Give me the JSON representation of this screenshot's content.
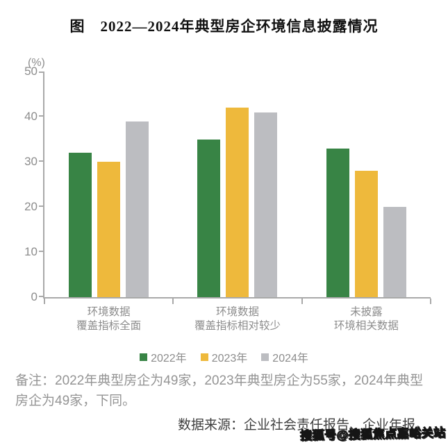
{
  "title": "图　2022—2024年典型房企环境信息披露情况",
  "chart_data": {
    "type": "bar",
    "title": "图　2022—2024年典型房企环境信息披露情况",
    "unit_label": "(%)",
    "categories": [
      "环境数据\n覆盖指标全面",
      "环境数据\n覆盖指标相对较少",
      "未披露\n环境相关数据"
    ],
    "series": [
      {
        "name": "2022年",
        "color": "#388445",
        "values": [
          32,
          35,
          33
        ]
      },
      {
        "name": "2023年",
        "color": "#EEB93C",
        "values": [
          30,
          42,
          28
        ]
      },
      {
        "name": "2024年",
        "color": "#BCBDC1",
        "values": [
          39,
          41,
          20
        ]
      }
    ],
    "ylim": [
      0,
      50
    ],
    "yticks": [
      0,
      10,
      20,
      30,
      40,
      50
    ],
    "grid": false,
    "legend_position": "bottom"
  },
  "notes": {
    "remark": "备注：2022年典型房企为49家，2023年典型房企为55家，2024年典型房企为49家，下同。",
    "source": "数据来源：企业社会责任报告、企业年报。"
  },
  "watermark": "搜狐号@搜狐焦点嘉峪关站",
  "colors": {
    "axis": "#A9A9A9",
    "tick_text": "#8C8C8C",
    "note_text": "#949494",
    "source_text": "#3E3E3E"
  }
}
